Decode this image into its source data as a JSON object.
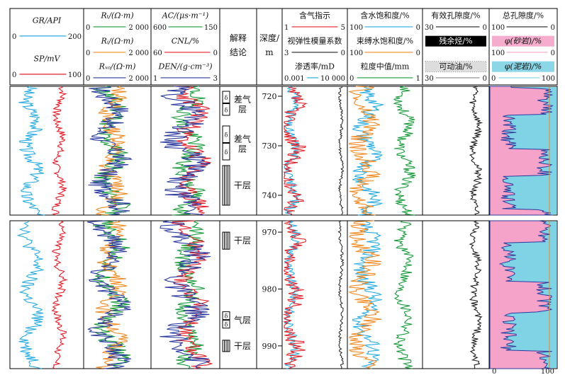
{
  "chart_data": {
    "type": "line",
    "tracks": [
      {
        "scales": [
          {
            "label": "GR/API",
            "min": "0",
            "max": "200",
            "color": "#29abe2"
          },
          {
            "label": "SP/mV",
            "min": "0",
            "max": "100",
            "color": "#e0202a"
          }
        ]
      },
      {
        "scales": [
          {
            "label": "Rₜ/(Ω·m)",
            "min": "0",
            "max": "2 000",
            "color": "#1a9b3c"
          },
          {
            "label": "Rᵢ/(Ω·m)",
            "min": "0",
            "max": "2 000",
            "color": "#f08a24"
          },
          {
            "label": "Rₓₒ/(Ω·m)",
            "min": "0",
            "max": "2 000",
            "color": "#2b3a9e"
          }
        ]
      },
      {
        "scales": [
          {
            "label": "AC/(μs·m⁻¹)",
            "min": "600",
            "max": "150",
            "color": "#1a9b3c"
          },
          {
            "label": "CNL/%",
            "min": "60",
            "max": "0",
            "color": "#e0202a"
          },
          {
            "label": "DEN/(g·cm⁻³)",
            "min": "1",
            "max": "3",
            "color": "#2b3a9e"
          }
        ]
      },
      {
        "scales": [
          {
            "label": "解释结论"
          }
        ]
      },
      {
        "scales": [
          {
            "label": "深度/m"
          }
        ]
      },
      {
        "scales": [
          {
            "label": "含气指示",
            "min": "1",
            "max": "5",
            "color": "#e0202a"
          },
          {
            "label": "视弹性模量系数",
            "min": "3",
            "max": "0",
            "color": "#222222"
          },
          {
            "label": "渗透率/mD",
            "min": "0.001",
            "max": "10 000",
            "color": "#29abe2"
          }
        ]
      },
      {
        "scales": [
          {
            "label": "含水饱和度/%",
            "min": "100",
            "max": "0",
            "color": "#29abe2"
          },
          {
            "label": "束缚水饱和度/%",
            "min": "100",
            "max": "0",
            "color": "#f08a24"
          },
          {
            "label": "粒度中值/mm",
            "min": "0",
            "max": "1",
            "color": "#1a9b3c"
          }
        ]
      },
      {
        "scales": [
          {
            "label": "有效孔隙度/%",
            "min": "30",
            "max": "0",
            "color": "#222222"
          },
          {
            "label": "残余烃/%",
            "min": "",
            "max": "",
            "color": "#000000",
            "fill": "black"
          },
          {
            "label": "可动油/%",
            "min": "30",
            "max": "0",
            "color": "#888888",
            "fill": "dots"
          }
        ]
      },
      {
        "scales": [
          {
            "label": "总孔隙度/%",
            "min": "100",
            "max": "0",
            "color": "#222222"
          },
          {
            "label": "φ(砂岩)/%",
            "min": "100",
            "max": "0",
            "color": "#f5a3c8",
            "fill": "pink"
          },
          {
            "label": "φ(泥岩)/%",
            "min": "0",
            "max": "100",
            "color": "#7fd3e4",
            "fill": "cyan"
          }
        ]
      }
    ],
    "panels": [
      {
        "depth_range": [
          718,
          744
        ],
        "depth_ticks": [
          720,
          730,
          740
        ],
        "interpretation": [
          {
            "depth": [
              719,
              724
            ],
            "label": "差气层",
            "symbol": "δ"
          },
          {
            "depth": [
              726,
              733
            ],
            "label": "差气层",
            "symbol": "δ"
          },
          {
            "depth": [
              734,
              742
            ],
            "label": "干层",
            "symbol": "|||"
          }
        ]
      },
      {
        "depth_range": [
          968,
          994
        ],
        "depth_ticks": [
          970,
          980,
          990
        ],
        "interpretation": [
          {
            "depth": [
              970,
              973
            ],
            "label": "干层",
            "symbol": "|||"
          },
          {
            "depth": [
              984,
              987
            ],
            "label": "气层",
            "symbol": "δ"
          },
          {
            "depth": [
              989,
              991
            ],
            "label": "干层",
            "symbol": "|||"
          }
        ]
      }
    ]
  }
}
